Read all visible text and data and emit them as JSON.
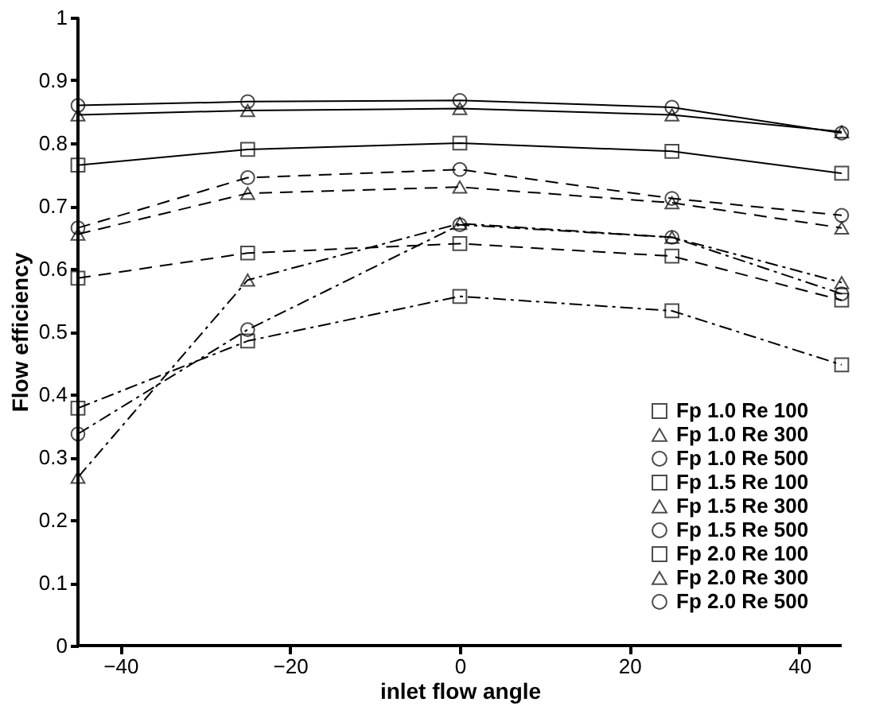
{
  "chart_data": {
    "type": "line",
    "xlabel": "inlet flow angle",
    "ylabel": "Flow efficiency",
    "x": [
      -45,
      -25,
      0,
      25,
      45
    ],
    "series": [
      {
        "name": "Fp 1.0 Re 100",
        "color": "#000000",
        "marker": "square",
        "line_style": "solid",
        "values": [
          0.765,
          0.79,
          0.8,
          0.787,
          0.752
        ]
      },
      {
        "name": "Fp 1.0 Re 300",
        "color": "#000000",
        "marker": "triangle",
        "line_style": "solid",
        "values": [
          0.845,
          0.852,
          0.855,
          0.845,
          0.818
        ]
      },
      {
        "name": "Fp 1.0 Re 500",
        "color": "#000000",
        "marker": "circle",
        "line_style": "solid",
        "values": [
          0.86,
          0.866,
          0.868,
          0.857,
          0.816
        ]
      },
      {
        "name": "Fp 1.5 Re 100",
        "color": "#000000",
        "marker": "square",
        "line_style": "dashed",
        "values": [
          0.585,
          0.625,
          0.64,
          0.62,
          0.55
        ]
      },
      {
        "name": "Fp 1.5 Re 300",
        "color": "#000000",
        "marker": "triangle",
        "line_style": "dashed",
        "values": [
          0.655,
          0.72,
          0.73,
          0.705,
          0.665
        ]
      },
      {
        "name": "Fp 1.5 Re 500",
        "color": "#000000",
        "marker": "circle",
        "line_style": "dashed",
        "values": [
          0.665,
          0.745,
          0.758,
          0.712,
          0.685
        ]
      },
      {
        "name": "Fp 2.0 Re 100",
        "color": "#000000",
        "marker": "square",
        "line_style": "dashdot",
        "values": [
          0.378,
          0.485,
          0.556,
          0.533,
          0.447
        ]
      },
      {
        "name": "Fp 2.0 Re 300",
        "color": "#000000",
        "marker": "triangle",
        "line_style": "dashdot",
        "values": [
          0.268,
          0.582,
          0.672,
          0.65,
          0.578
        ]
      },
      {
        "name": "Fp 2.0 Re 500",
        "color": "#000000",
        "marker": "circle",
        "line_style": "dashdot",
        "values": [
          0.337,
          0.503,
          0.67,
          0.65,
          0.56
        ]
      }
    ],
    "xlim": [
      -45,
      45
    ],
    "xticks": [
      -40,
      -20,
      0,
      20,
      40
    ],
    "ylim": [
      0,
      1
    ],
    "yticks": [
      {
        "value": 0,
        "label": "0"
      },
      0.1,
      0.2,
      0.3,
      0.4,
      0.5,
      0.6,
      0.7,
      0.8,
      0.9,
      {
        "value": 1,
        "label": "1"
      }
    ],
    "grid": false,
    "legend": "bottom right"
  }
}
